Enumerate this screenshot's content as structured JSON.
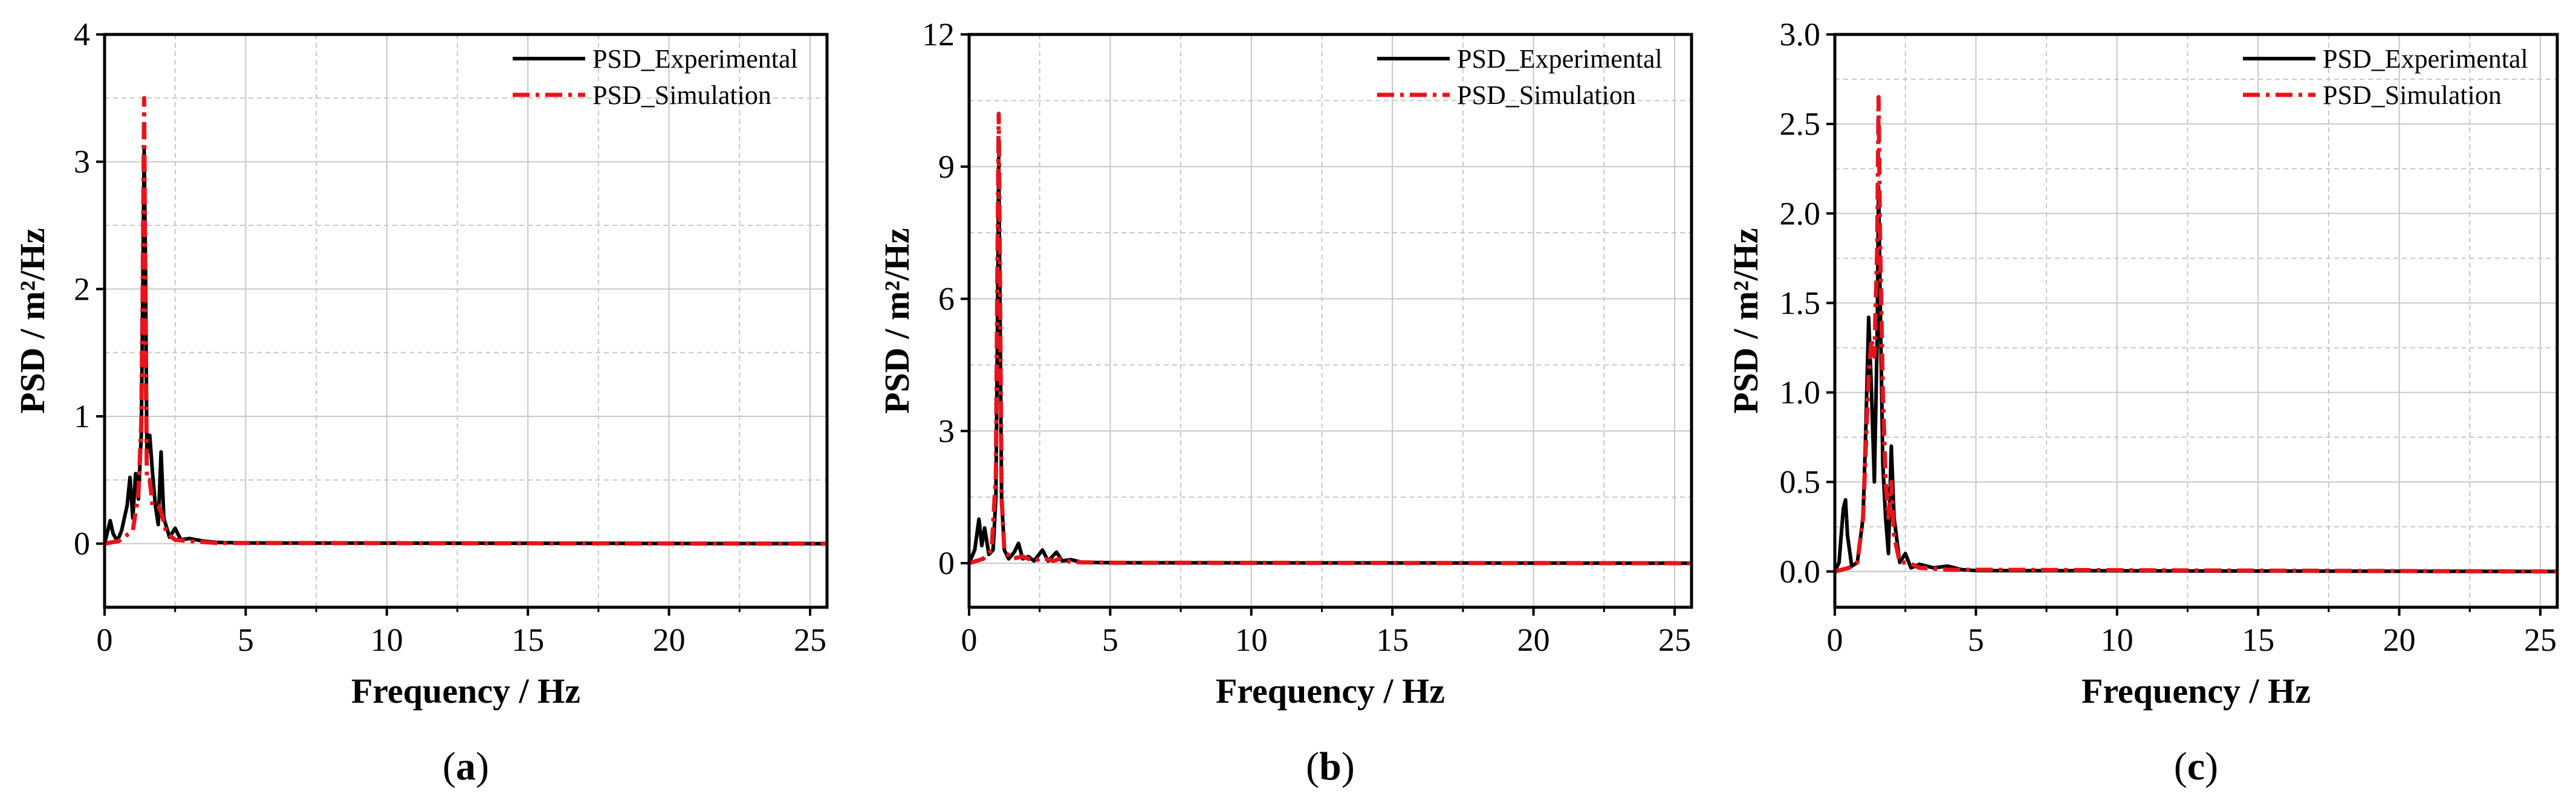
{
  "colors": {
    "experimental": "#000000",
    "simulation": "#e8141a",
    "grid": "#c8c8c8",
    "axis": "#000000"
  },
  "chart_data": [
    {
      "type": "line",
      "caption": "(a)",
      "caption_letter": "a",
      "xlabel": "Frequency / Hz",
      "ylabel": "PSD / m²/Hz",
      "xlim": [
        0,
        25.6
      ],
      "ylim": [
        -0.5,
        4
      ],
      "xticks": [
        0,
        5,
        10,
        15,
        20,
        25
      ],
      "yticks": [
        0,
        1,
        2,
        3,
        4
      ],
      "ytick_labels": [
        "0",
        "1",
        "2",
        "3",
        "4"
      ],
      "grid": true,
      "legend_position": "top-right",
      "series": [
        {
          "name": "PSD_Experimental",
          "color": "#000000",
          "style": "solid",
          "points": [
            [
              0,
              0
            ],
            [
              0.2,
              0.18
            ],
            [
              0.3,
              0.08
            ],
            [
              0.45,
              0.02
            ],
            [
              0.6,
              0.1
            ],
            [
              0.8,
              0.3
            ],
            [
              0.9,
              0.52
            ],
            [
              1.0,
              0.2
            ],
            [
              1.1,
              0.55
            ],
            [
              1.2,
              0.35
            ],
            [
              1.3,
              0.85
            ],
            [
              1.35,
              1.9
            ],
            [
              1.4,
              3.1
            ],
            [
              1.45,
              2.2
            ],
            [
              1.5,
              0.7
            ],
            [
              1.6,
              0.85
            ],
            [
              1.7,
              0.55
            ],
            [
              1.8,
              0.3
            ],
            [
              1.9,
              0.15
            ],
            [
              2.0,
              0.72
            ],
            [
              2.1,
              0.2
            ],
            [
              2.3,
              0.05
            ],
            [
              2.5,
              0.12
            ],
            [
              2.7,
              0.03
            ],
            [
              3.0,
              0.04
            ],
            [
              3.5,
              0.02
            ],
            [
              4.0,
              0.01
            ],
            [
              5.0,
              0.005
            ],
            [
              25.6,
              0
            ]
          ]
        },
        {
          "name": "PSD_Simulation",
          "color": "#e8141a",
          "style": "dashdot",
          "points": [
            [
              0,
              0
            ],
            [
              0.5,
              0.02
            ],
            [
              1.0,
              0.1
            ],
            [
              1.2,
              0.4
            ],
            [
              1.3,
              0.95
            ],
            [
              1.35,
              2.0
            ],
            [
              1.4,
              3.5
            ],
            [
              1.45,
              1.6
            ],
            [
              1.5,
              0.5
            ],
            [
              1.6,
              0.5
            ],
            [
              1.7,
              0.3
            ],
            [
              1.9,
              0.3
            ],
            [
              2.0,
              0.25
            ],
            [
              2.2,
              0.08
            ],
            [
              2.5,
              0.03
            ],
            [
              3.0,
              0.02
            ],
            [
              4.0,
              0.005
            ],
            [
              25.6,
              0
            ]
          ]
        }
      ]
    },
    {
      "type": "line",
      "caption": "(b)",
      "caption_letter": "b",
      "xlabel": "Frequency / Hz",
      "ylabel": "PSD / m²/Hz",
      "xlim": [
        0,
        25.6
      ],
      "ylim": [
        -1,
        12
      ],
      "xticks": [
        0,
        5,
        10,
        15,
        20,
        25
      ],
      "yticks": [
        0,
        3,
        6,
        9,
        12
      ],
      "ytick_labels": [
        "0",
        "3",
        "6",
        "9",
        "12"
      ],
      "grid": true,
      "legend_position": "top-right",
      "series": [
        {
          "name": "PSD_Experimental",
          "color": "#000000",
          "style": "solid",
          "points": [
            [
              0,
              0
            ],
            [
              0.2,
              0.3
            ],
            [
              0.35,
              1.0
            ],
            [
              0.45,
              0.4
            ],
            [
              0.55,
              0.8
            ],
            [
              0.7,
              0.2
            ],
            [
              0.85,
              0.3
            ],
            [
              0.95,
              1.5
            ],
            [
              1.0,
              5.0
            ],
            [
              1.05,
              9.2
            ],
            [
              1.1,
              5.5
            ],
            [
              1.15,
              1.5
            ],
            [
              1.25,
              0.3
            ],
            [
              1.4,
              0.1
            ],
            [
              1.6,
              0.25
            ],
            [
              1.75,
              0.45
            ],
            [
              1.9,
              0.1
            ],
            [
              2.1,
              0.15
            ],
            [
              2.3,
              0.05
            ],
            [
              2.6,
              0.3
            ],
            [
              2.8,
              0.05
            ],
            [
              3.1,
              0.25
            ],
            [
              3.3,
              0.05
            ],
            [
              3.6,
              0.08
            ],
            [
              4.0,
              0.02
            ],
            [
              5.0,
              0.01
            ],
            [
              25.6,
              0
            ]
          ]
        },
        {
          "name": "PSD_Simulation",
          "color": "#e8141a",
          "style": "dashdot",
          "points": [
            [
              0,
              0
            ],
            [
              0.5,
              0.1
            ],
            [
              0.8,
              0.3
            ],
            [
              0.95,
              2.0
            ],
            [
              1.0,
              6.5
            ],
            [
              1.05,
              10.2
            ],
            [
              1.1,
              6.0
            ],
            [
              1.15,
              1.5
            ],
            [
              1.25,
              0.3
            ],
            [
              1.5,
              0.1
            ],
            [
              1.9,
              0.15
            ],
            [
              2.3,
              0.05
            ],
            [
              2.6,
              0.12
            ],
            [
              3.0,
              0.05
            ],
            [
              3.2,
              0.1
            ],
            [
              3.6,
              0.03
            ],
            [
              4.0,
              0.02
            ],
            [
              5.0,
              0.01
            ],
            [
              25.6,
              0
            ]
          ]
        }
      ]
    },
    {
      "type": "line",
      "caption": "(c)",
      "caption_letter": "c",
      "xlabel": "Frequency / Hz",
      "ylabel": "PSD / m²/Hz",
      "xlim": [
        0,
        25.6
      ],
      "ylim": [
        -0.2,
        3.0
      ],
      "xticks": [
        0,
        5,
        10,
        15,
        20,
        25
      ],
      "yticks": [
        0,
        0.5,
        1.0,
        1.5,
        2.0,
        2.5,
        3.0
      ],
      "ytick_labels": [
        "0.0",
        "0.5",
        "1.0",
        "1.5",
        "2.0",
        "2.5",
        "3.0"
      ],
      "grid": true,
      "legend_position": "top-right",
      "series": [
        {
          "name": "PSD_Experimental",
          "color": "#000000",
          "style": "solid",
          "points": [
            [
              0,
              0
            ],
            [
              0.15,
              0.05
            ],
            [
              0.3,
              0.35
            ],
            [
              0.38,
              0.4
            ],
            [
              0.45,
              0.2
            ],
            [
              0.6,
              0.03
            ],
            [
              0.8,
              0.05
            ],
            [
              1.0,
              0.3
            ],
            [
              1.1,
              0.8
            ],
            [
              1.2,
              1.42
            ],
            [
              1.3,
              1.0
            ],
            [
              1.4,
              0.5
            ],
            [
              1.5,
              1.3
            ],
            [
              1.55,
              2.15
            ],
            [
              1.6,
              1.6
            ],
            [
              1.7,
              0.6
            ],
            [
              1.8,
              0.3
            ],
            [
              1.9,
              0.1
            ],
            [
              2.0,
              0.7
            ],
            [
              2.1,
              0.3
            ],
            [
              2.3,
              0.05
            ],
            [
              2.5,
              0.1
            ],
            [
              2.7,
              0.02
            ],
            [
              3.0,
              0.04
            ],
            [
              3.5,
              0.02
            ],
            [
              4.0,
              0.03
            ],
            [
              4.5,
              0.01
            ],
            [
              5.0,
              0.005
            ],
            [
              25.6,
              0
            ]
          ]
        },
        {
          "name": "PSD_Simulation",
          "color": "#e8141a",
          "style": "dashdot",
          "points": [
            [
              0,
              0
            ],
            [
              0.5,
              0.02
            ],
            [
              0.8,
              0.05
            ],
            [
              1.0,
              0.3
            ],
            [
              1.1,
              0.7
            ],
            [
              1.2,
              1.1
            ],
            [
              1.3,
              1.3
            ],
            [
              1.4,
              1.2
            ],
            [
              1.5,
              1.8
            ],
            [
              1.55,
              2.65
            ],
            [
              1.6,
              1.9
            ],
            [
              1.7,
              1.0
            ],
            [
              1.8,
              0.5
            ],
            [
              1.9,
              0.3
            ],
            [
              2.0,
              0.5
            ],
            [
              2.1,
              0.2
            ],
            [
              2.3,
              0.05
            ],
            [
              2.6,
              0.05
            ],
            [
              3.0,
              0.02
            ],
            [
              4.0,
              0.01
            ],
            [
              25.6,
              0
            ]
          ]
        }
      ]
    }
  ]
}
